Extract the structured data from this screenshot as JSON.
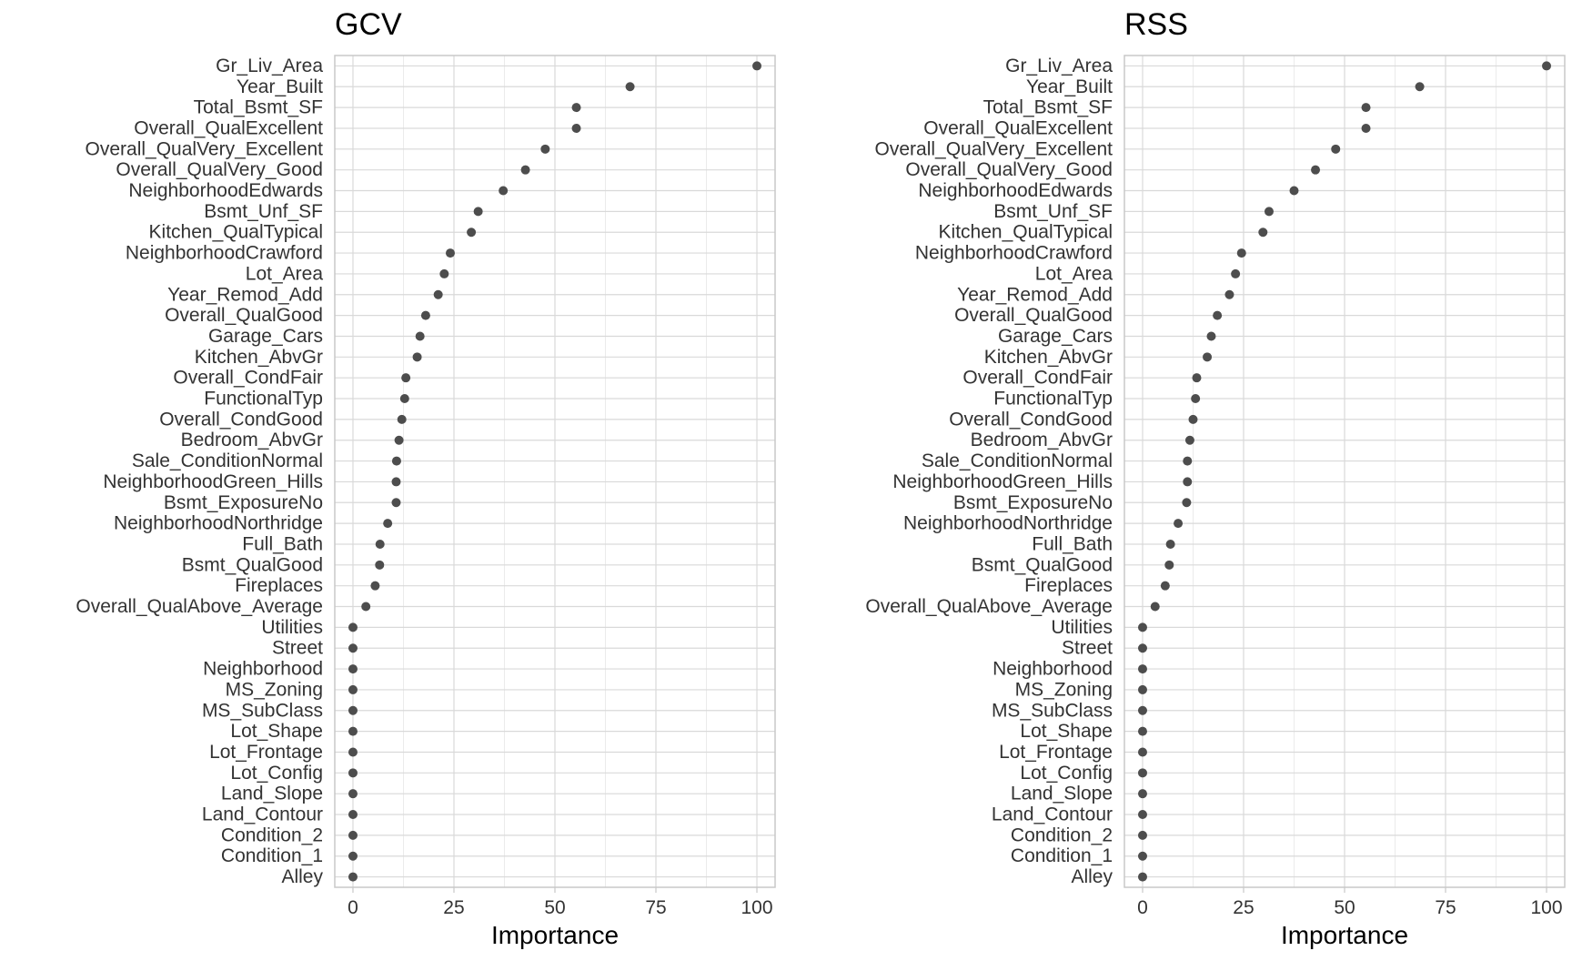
{
  "chart_data": [
    {
      "type": "scatter",
      "title": "GCV",
      "xlabel": "Importance",
      "ylabel": "",
      "xlim": [
        -4.5,
        104.5
      ],
      "x_ticks": [
        0,
        25,
        50,
        75,
        100
      ],
      "grid": true,
      "categories": [
        "Gr_Liv_Area",
        "Year_Built",
        "Total_Bsmt_SF",
        "Overall_QualExcellent",
        "Overall_QualVery_Excellent",
        "Overall_QualVery_Good",
        "NeighborhoodEdwards",
        "Bsmt_Unf_SF",
        "Kitchen_QualTypical",
        "NeighborhoodCrawford",
        "Lot_Area",
        "Year_Remod_Add",
        "Overall_QualGood",
        "Garage_Cars",
        "Kitchen_AbvGr",
        "Overall_CondFair",
        "FunctionalTyp",
        "Overall_CondGood",
        "Bedroom_AbvGr",
        "Sale_ConditionNormal",
        "NeighborhoodGreen_Hills",
        "Bsmt_ExposureNo",
        "NeighborhoodNorthridge",
        "Full_Bath",
        "Bsmt_QualGood",
        "Fireplaces",
        "Overall_QualAbove_Average",
        "Utilities",
        "Street",
        "Neighborhood",
        "MS_Zoning",
        "MS_SubClass",
        "Lot_Shape",
        "Lot_Frontage",
        "Lot_Config",
        "Land_Slope",
        "Land_Contour",
        "Condition_2",
        "Condition_1",
        "Alley"
      ],
      "values": [
        100,
        68.6,
        55.3,
        55.3,
        47.6,
        42.7,
        37.2,
        31.0,
        29.3,
        24.1,
        22.6,
        21.1,
        18.0,
        16.6,
        15.9,
        13.1,
        12.8,
        12.1,
        11.4,
        10.8,
        10.7,
        10.7,
        8.6,
        6.7,
        6.6,
        5.5,
        3.2,
        0,
        0,
        0,
        0,
        0,
        0,
        0,
        0,
        0,
        0,
        0,
        0,
        0
      ]
    },
    {
      "type": "scatter",
      "title": "RSS",
      "xlabel": "Importance",
      "ylabel": "",
      "xlim": [
        -4.5,
        104.5
      ],
      "x_ticks": [
        0,
        25,
        50,
        75,
        100
      ],
      "grid": true,
      "categories": [
        "Gr_Liv_Area",
        "Year_Built",
        "Total_Bsmt_SF",
        "Overall_QualExcellent",
        "Overall_QualVery_Excellent",
        "Overall_QualVery_Good",
        "NeighborhoodEdwards",
        "Bsmt_Unf_SF",
        "Kitchen_QualTypical",
        "NeighborhoodCrawford",
        "Lot_Area",
        "Year_Remod_Add",
        "Overall_QualGood",
        "Garage_Cars",
        "Kitchen_AbvGr",
        "Overall_CondFair",
        "FunctionalTyp",
        "Overall_CondGood",
        "Bedroom_AbvGr",
        "Sale_ConditionNormal",
        "NeighborhoodGreen_Hills",
        "Bsmt_ExposureNo",
        "NeighborhoodNorthridge",
        "Full_Bath",
        "Bsmt_QualGood",
        "Fireplaces",
        "Overall_QualAbove_Average",
        "Utilities",
        "Street",
        "Neighborhood",
        "MS_Zoning",
        "MS_SubClass",
        "Lot_Shape",
        "Lot_Frontage",
        "Lot_Config",
        "Land_Slope",
        "Land_Contour",
        "Condition_2",
        "Condition_1",
        "Alley"
      ],
      "values": [
        100,
        68.6,
        55.3,
        55.3,
        47.8,
        42.8,
        37.5,
        31.3,
        29.8,
        24.5,
        23.0,
        21.5,
        18.5,
        17.0,
        16.0,
        13.4,
        13.1,
        12.5,
        11.7,
        11.1,
        11.1,
        10.9,
        8.8,
        6.9,
        6.6,
        5.6,
        3.1,
        0,
        0,
        0,
        0,
        0,
        0,
        0,
        0,
        0,
        0,
        0,
        0,
        0
      ]
    }
  ],
  "colors": {
    "point": "#4d4d4d",
    "grid_major": "#d9d9d9",
    "grid_minor": "#ebebeb",
    "panel_border": "#c8c8c8",
    "text": "#333333",
    "title": "#000000"
  }
}
